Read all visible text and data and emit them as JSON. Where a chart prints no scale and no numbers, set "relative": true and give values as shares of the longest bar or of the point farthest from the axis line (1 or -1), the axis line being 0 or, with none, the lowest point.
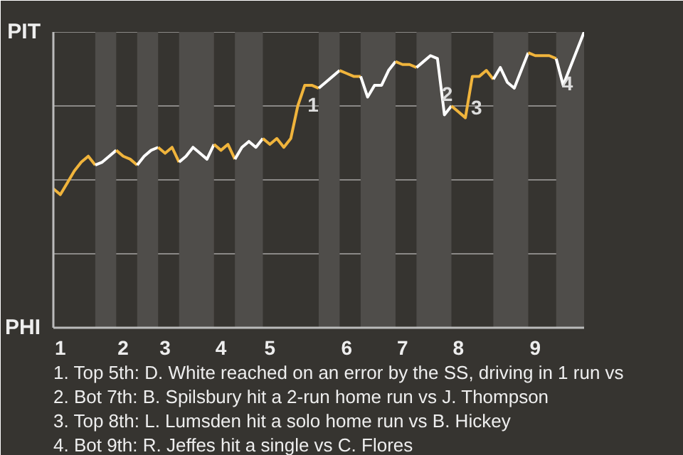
{
  "chart_data": {
    "type": "line",
    "relative": true,
    "categories": [
      null,
      "1",
      null,
      null,
      null,
      null,
      null,
      null,
      null,
      null,
      "2",
      null,
      null,
      null,
      null,
      null,
      "3",
      null,
      null,
      null,
      null,
      null,
      null,
      null,
      "4",
      null,
      null,
      null,
      null,
      null,
      null,
      "5",
      null,
      null,
      null,
      null,
      null,
      null,
      null,
      null,
      null,
      null,
      "6",
      null,
      null,
      null,
      null,
      null,
      null,
      null,
      "7",
      null,
      null,
      null,
      null,
      null,
      null,
      null,
      "8",
      null,
      null,
      null,
      null,
      null,
      null,
      null,
      null,
      null,
      null,
      "9",
      null,
      null,
      null,
      null,
      null,
      null,
      null
    ],
    "series": [
      {
        "color": "#f0b43c",
        "values": [
          0.47,
          0.45,
          0.49,
          0.53,
          0.56,
          0.58,
          0.55,
          null,
          null,
          null,
          null,
          null,
          null,
          null,
          null,
          null,
          null,
          null,
          null,
          null,
          null,
          null,
          null,
          null,
          null,
          null,
          null,
          null,
          null,
          null,
          null,
          null,
          null,
          null,
          null,
          null,
          null,
          null,
          null,
          null,
          null,
          null,
          null,
          null,
          null,
          null,
          null,
          null,
          null,
          null,
          null,
          null,
          null,
          null,
          null,
          null,
          null,
          null,
          null,
          null,
          null,
          null,
          null,
          null,
          null,
          null,
          null,
          null,
          null,
          null,
          null,
          null,
          null,
          null,
          null,
          null,
          null
        ]
      },
      {
        "color": "#ffffff",
        "values": [
          null,
          null,
          null,
          null,
          null,
          null,
          0.55,
          0.56,
          0.58,
          0.6,
          null,
          null,
          null,
          null,
          null,
          null,
          null,
          null,
          null,
          null,
          null,
          null,
          null,
          null,
          null,
          null,
          null,
          null,
          null,
          null,
          null,
          null,
          null,
          null,
          null,
          null,
          null,
          null,
          null,
          null,
          null,
          null,
          null,
          null,
          null,
          null,
          null,
          null,
          null,
          null,
          null,
          null,
          null,
          null,
          null,
          null,
          null,
          null,
          null,
          null,
          null,
          null,
          null,
          null,
          null,
          null,
          null,
          null,
          null,
          null,
          null,
          null,
          null,
          null,
          null,
          null,
          null
        ]
      },
      {
        "color": "#f0b43c",
        "values": [
          null,
          null,
          null,
          null,
          null,
          null,
          null,
          null,
          null,
          0.6,
          0.58,
          0.57,
          0.55,
          null,
          null,
          null,
          null,
          null,
          null,
          null,
          null,
          null,
          null,
          null,
          null,
          null,
          null,
          null,
          null,
          null,
          null,
          null,
          null,
          null,
          null,
          null,
          null,
          null,
          null,
          null,
          null,
          null,
          null,
          null,
          null,
          null,
          null,
          null,
          null,
          null,
          null,
          null,
          null,
          null,
          null,
          null,
          null,
          null,
          null,
          null,
          null,
          null,
          null,
          null,
          null,
          null,
          null,
          null,
          null,
          null,
          null,
          null,
          null,
          null,
          null,
          null,
          null
        ]
      },
      {
        "color": "#ffffff",
        "values": [
          null,
          null,
          null,
          null,
          null,
          null,
          null,
          null,
          null,
          null,
          null,
          null,
          0.55,
          0.58,
          0.6,
          0.61,
          null,
          null,
          null,
          null,
          null,
          null,
          null,
          null,
          null,
          null,
          null,
          null,
          null,
          null,
          null,
          null,
          null,
          null,
          null,
          null,
          null,
          null,
          null,
          null,
          null,
          null,
          null,
          null,
          null,
          null,
          null,
          null,
          null,
          null,
          null,
          null,
          null,
          null,
          null,
          null,
          null,
          null,
          null,
          null,
          null,
          null,
          null,
          null,
          null,
          null,
          null,
          null,
          null,
          null,
          null,
          null,
          null,
          null,
          null,
          null,
          null
        ]
      },
      {
        "color": "#f0b43c",
        "values": [
          null,
          null,
          null,
          null,
          null,
          null,
          null,
          null,
          null,
          null,
          null,
          null,
          null,
          null,
          null,
          0.61,
          0.59,
          0.61,
          0.56,
          null,
          null,
          null,
          null,
          null,
          null,
          null,
          null,
          null,
          null,
          null,
          null,
          null,
          null,
          null,
          null,
          null,
          null,
          null,
          null,
          null,
          null,
          null,
          null,
          null,
          null,
          null,
          null,
          null,
          null,
          null,
          null,
          null,
          null,
          null,
          null,
          null,
          null,
          null,
          null,
          null,
          null,
          null,
          null,
          null,
          null,
          null,
          null,
          null,
          null,
          null,
          null,
          null,
          null,
          null,
          null,
          null,
          null
        ]
      },
      {
        "color": "#ffffff",
        "values": [
          null,
          null,
          null,
          null,
          null,
          null,
          null,
          null,
          null,
          null,
          null,
          null,
          null,
          null,
          null,
          null,
          null,
          null,
          0.56,
          0.58,
          0.61,
          0.59,
          0.57,
          0.62,
          null,
          null,
          null,
          null,
          null,
          null,
          null,
          null,
          null,
          null,
          null,
          null,
          null,
          null,
          null,
          null,
          null,
          null,
          null,
          null,
          null,
          null,
          null,
          null,
          null,
          null,
          null,
          null,
          null,
          null,
          null,
          null,
          null,
          null,
          null,
          null,
          null,
          null,
          null,
          null,
          null,
          null,
          null,
          null,
          null,
          null,
          null,
          null,
          null,
          null,
          null,
          null,
          null
        ]
      },
      {
        "color": "#f0b43c",
        "values": [
          null,
          null,
          null,
          null,
          null,
          null,
          null,
          null,
          null,
          null,
          null,
          null,
          null,
          null,
          null,
          null,
          null,
          null,
          null,
          null,
          null,
          null,
          null,
          0.62,
          0.6,
          0.62,
          0.57,
          null,
          null,
          null,
          null,
          null,
          null,
          null,
          null,
          null,
          null,
          null,
          null,
          null,
          null,
          null,
          null,
          null,
          null,
          null,
          null,
          null,
          null,
          null,
          null,
          null,
          null,
          null,
          null,
          null,
          null,
          null,
          null,
          null,
          null,
          null,
          null,
          null,
          null,
          null,
          null,
          null,
          null,
          null,
          null,
          null,
          null,
          null,
          null,
          null,
          null
        ]
      },
      {
        "color": "#ffffff",
        "values": [
          null,
          null,
          null,
          null,
          null,
          null,
          null,
          null,
          null,
          null,
          null,
          null,
          null,
          null,
          null,
          null,
          null,
          null,
          null,
          null,
          null,
          null,
          null,
          null,
          null,
          null,
          0.57,
          0.61,
          0.63,
          0.61,
          0.64,
          null,
          null,
          null,
          null,
          null,
          null,
          null,
          null,
          null,
          null,
          null,
          null,
          null,
          null,
          null,
          null,
          null,
          null,
          null,
          null,
          null,
          null,
          null,
          null,
          null,
          null,
          null,
          null,
          null,
          null,
          null,
          null,
          null,
          null,
          null,
          null,
          null,
          null,
          null,
          null,
          null,
          null,
          null,
          null,
          null,
          null
        ]
      },
      {
        "color": "#f0b43c",
        "values": [
          null,
          null,
          null,
          null,
          null,
          null,
          null,
          null,
          null,
          null,
          null,
          null,
          null,
          null,
          null,
          null,
          null,
          null,
          null,
          null,
          null,
          null,
          null,
          null,
          null,
          null,
          null,
          null,
          null,
          null,
          0.64,
          0.62,
          0.64,
          0.61,
          0.64,
          0.75,
          0.82,
          0.82,
          0.81,
          null,
          null,
          null,
          null,
          null,
          null,
          null,
          null,
          null,
          null,
          null,
          null,
          null,
          null,
          null,
          null,
          null,
          null,
          null,
          null,
          null,
          null,
          null,
          null,
          null,
          null,
          null,
          null,
          null,
          null,
          null,
          null,
          null,
          null,
          null,
          null,
          null,
          null
        ]
      },
      {
        "color": "#ffffff",
        "values": [
          null,
          null,
          null,
          null,
          null,
          null,
          null,
          null,
          null,
          null,
          null,
          null,
          null,
          null,
          null,
          null,
          null,
          null,
          null,
          null,
          null,
          null,
          null,
          null,
          null,
          null,
          null,
          null,
          null,
          null,
          null,
          null,
          null,
          null,
          null,
          null,
          null,
          null,
          0.81,
          0.83,
          0.85,
          0.87,
          null,
          null,
          null,
          null,
          null,
          null,
          null,
          null,
          null,
          null,
          null,
          null,
          null,
          null,
          null,
          null,
          null,
          null,
          null,
          null,
          null,
          null,
          null,
          null,
          null,
          null,
          null,
          null,
          null,
          null,
          null,
          null,
          null,
          null,
          null
        ]
      },
      {
        "color": "#f0b43c",
        "values": [
          null,
          null,
          null,
          null,
          null,
          null,
          null,
          null,
          null,
          null,
          null,
          null,
          null,
          null,
          null,
          null,
          null,
          null,
          null,
          null,
          null,
          null,
          null,
          null,
          null,
          null,
          null,
          null,
          null,
          null,
          null,
          null,
          null,
          null,
          null,
          null,
          null,
          null,
          null,
          null,
          null,
          0.87,
          0.86,
          0.85,
          0.85,
          null,
          null,
          null,
          null,
          null,
          null,
          null,
          null,
          null,
          null,
          null,
          null,
          null,
          null,
          null,
          null,
          null,
          null,
          null,
          null,
          null,
          null,
          null,
          null,
          null,
          null,
          null,
          null,
          null,
          null,
          null,
          null
        ]
      },
      {
        "color": "#ffffff",
        "values": [
          null,
          null,
          null,
          null,
          null,
          null,
          null,
          null,
          null,
          null,
          null,
          null,
          null,
          null,
          null,
          null,
          null,
          null,
          null,
          null,
          null,
          null,
          null,
          null,
          null,
          null,
          null,
          null,
          null,
          null,
          null,
          null,
          null,
          null,
          null,
          null,
          null,
          null,
          null,
          null,
          null,
          null,
          null,
          null,
          0.85,
          0.78,
          0.82,
          0.82,
          0.87,
          0.9,
          null,
          null,
          null,
          null,
          null,
          null,
          null,
          null,
          null,
          null,
          null,
          null,
          null,
          null,
          null,
          null,
          null,
          null,
          null,
          null,
          null,
          null,
          null,
          null,
          null,
          null,
          null
        ]
      },
      {
        "color": "#f0b43c",
        "values": [
          null,
          null,
          null,
          null,
          null,
          null,
          null,
          null,
          null,
          null,
          null,
          null,
          null,
          null,
          null,
          null,
          null,
          null,
          null,
          null,
          null,
          null,
          null,
          null,
          null,
          null,
          null,
          null,
          null,
          null,
          null,
          null,
          null,
          null,
          null,
          null,
          null,
          null,
          null,
          null,
          null,
          null,
          null,
          null,
          null,
          null,
          null,
          null,
          null,
          0.9,
          0.89,
          0.89,
          0.88,
          null,
          null,
          null,
          null,
          null,
          null,
          null,
          null,
          null,
          null,
          null,
          null,
          null,
          null,
          null,
          null,
          null,
          null,
          null,
          null,
          null,
          null,
          null,
          null
        ]
      },
      {
        "color": "#ffffff",
        "values": [
          null,
          null,
          null,
          null,
          null,
          null,
          null,
          null,
          null,
          null,
          null,
          null,
          null,
          null,
          null,
          null,
          null,
          null,
          null,
          null,
          null,
          null,
          null,
          null,
          null,
          null,
          null,
          null,
          null,
          null,
          null,
          null,
          null,
          null,
          null,
          null,
          null,
          null,
          null,
          null,
          null,
          null,
          null,
          null,
          null,
          null,
          null,
          null,
          null,
          null,
          null,
          null,
          0.88,
          0.9,
          0.92,
          0.91,
          0.72,
          0.75,
          null,
          null,
          null,
          null,
          null,
          null,
          null,
          null,
          null,
          null,
          null,
          null,
          null,
          null,
          null,
          null,
          null,
          null,
          null
        ]
      },
      {
        "color": "#f0b43c",
        "values": [
          null,
          null,
          null,
          null,
          null,
          null,
          null,
          null,
          null,
          null,
          null,
          null,
          null,
          null,
          null,
          null,
          null,
          null,
          null,
          null,
          null,
          null,
          null,
          null,
          null,
          null,
          null,
          null,
          null,
          null,
          null,
          null,
          null,
          null,
          null,
          null,
          null,
          null,
          null,
          null,
          null,
          null,
          null,
          null,
          null,
          null,
          null,
          null,
          null,
          null,
          null,
          null,
          null,
          null,
          null,
          null,
          null,
          0.75,
          0.73,
          0.71,
          0.85,
          0.85,
          0.87,
          0.84,
          null,
          null,
          null,
          null,
          null,
          null,
          null,
          null,
          null,
          null,
          null,
          null,
          null
        ]
      },
      {
        "color": "#ffffff",
        "values": [
          null,
          null,
          null,
          null,
          null,
          null,
          null,
          null,
          null,
          null,
          null,
          null,
          null,
          null,
          null,
          null,
          null,
          null,
          null,
          null,
          null,
          null,
          null,
          null,
          null,
          null,
          null,
          null,
          null,
          null,
          null,
          null,
          null,
          null,
          null,
          null,
          null,
          null,
          null,
          null,
          null,
          null,
          null,
          null,
          null,
          null,
          null,
          null,
          null,
          null,
          null,
          null,
          null,
          null,
          null,
          null,
          null,
          null,
          null,
          null,
          null,
          null,
          null,
          0.84,
          0.88,
          0.83,
          0.81,
          0.87,
          0.93,
          null,
          null,
          null,
          null,
          null,
          null,
          null,
          null
        ]
      },
      {
        "color": "#f0b43c",
        "values": [
          null,
          null,
          null,
          null,
          null,
          null,
          null,
          null,
          null,
          null,
          null,
          null,
          null,
          null,
          null,
          null,
          null,
          null,
          null,
          null,
          null,
          null,
          null,
          null,
          null,
          null,
          null,
          null,
          null,
          null,
          null,
          null,
          null,
          null,
          null,
          null,
          null,
          null,
          null,
          null,
          null,
          null,
          null,
          null,
          null,
          null,
          null,
          null,
          null,
          null,
          null,
          null,
          null,
          null,
          null,
          null,
          null,
          null,
          null,
          null,
          null,
          null,
          null,
          null,
          null,
          null,
          null,
          null,
          0.93,
          0.92,
          0.92,
          0.92,
          0.91,
          null,
          null,
          null,
          null
        ]
      },
      {
        "color": "#ffffff",
        "values": [
          null,
          null,
          null,
          null,
          null,
          null,
          null,
          null,
          null,
          null,
          null,
          null,
          null,
          null,
          null,
          null,
          null,
          null,
          null,
          null,
          null,
          null,
          null,
          null,
          null,
          null,
          null,
          null,
          null,
          null,
          null,
          null,
          null,
          null,
          null,
          null,
          null,
          null,
          null,
          null,
          null,
          null,
          null,
          null,
          null,
          null,
          null,
          null,
          null,
          null,
          null,
          null,
          null,
          null,
          null,
          null,
          null,
          null,
          null,
          null,
          null,
          null,
          null,
          null,
          null,
          null,
          null,
          null,
          null,
          null,
          null,
          null,
          0.91,
          0.82,
          0.88,
          0.94,
          1.0
        ]
      }
    ],
    "grid": "y",
    "line_style": "solid",
    "annotations": [
      "PIT",
      "PHI",
      "1",
      "2",
      "3",
      "4",
      "1. Top 5th: D. White reached on an error by the SS, driving in 1 run vs",
      "2. Bot 7th: B. Spilsbury hit a 2-run home run vs J. Thompson",
      "3. Top 8th: L. Lumsden hit a solo home run vs B. Hickey",
      "4. Bot 9th: R. Jeffes hit a single vs C. Flores"
    ]
  }
}
